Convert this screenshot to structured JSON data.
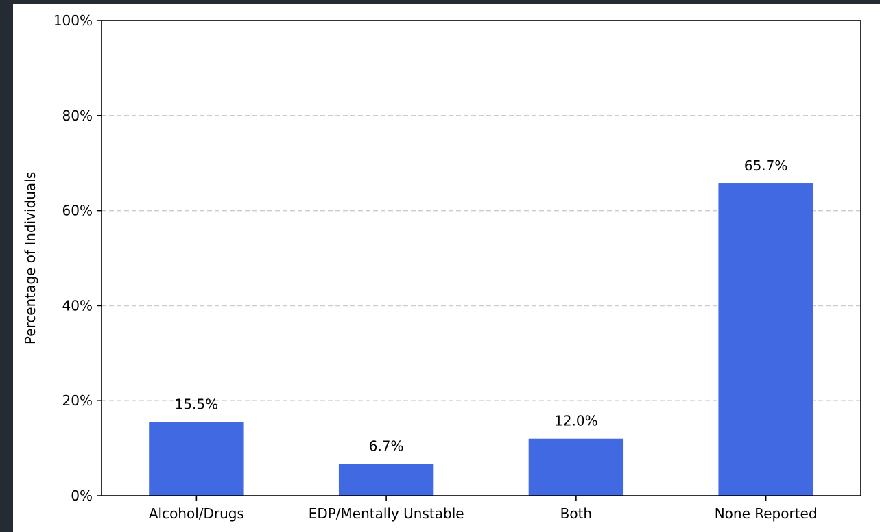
{
  "window": {
    "background": "#252b33",
    "figure_background": "#ffffff"
  },
  "chart_data": {
    "type": "bar",
    "categories": [
      "Alcohol/Drugs",
      "EDP/Mentally Unstable",
      "Both",
      "None Reported"
    ],
    "values": [
      15.5,
      6.7,
      12.0,
      65.7
    ],
    "data_labels": [
      "15.5%",
      "6.7%",
      "12.0%",
      "65.7%"
    ],
    "title": "",
    "xlabel": "",
    "ylabel": "Percentage of Individuals",
    "ylim": [
      0,
      100
    ],
    "yticks": [
      0,
      20,
      40,
      60,
      80,
      100
    ],
    "ytick_labels": [
      "0%",
      "20%",
      "40%",
      "60%",
      "80%",
      "100%"
    ],
    "grid": "y-dashed",
    "legend": "none",
    "bar_color": "#4169e1"
  }
}
